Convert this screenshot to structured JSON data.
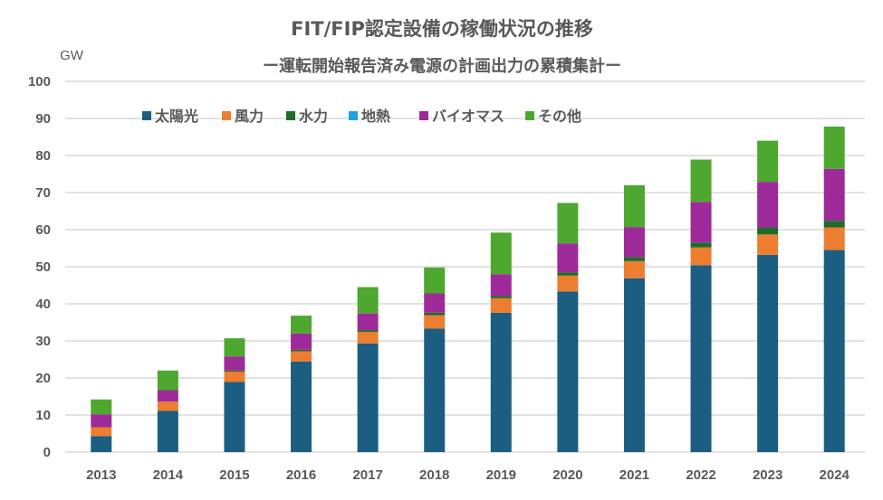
{
  "chart_data": {
    "type": "bar",
    "stacked": true,
    "title": "FIT/FIP認定設備の稼働状況の推移",
    "subtitle": "ー運転開始報告済み電源の計画出力の累積集計ー",
    "xlabel": "",
    "ylabel": "GW",
    "ylim": [
      0,
      100
    ],
    "yticks": [
      0,
      10,
      20,
      30,
      40,
      50,
      60,
      70,
      80,
      90,
      100
    ],
    "grid": true,
    "legend_position": "top-left",
    "categories": [
      "2013",
      "2014",
      "2015",
      "2016",
      "2017",
      "2018",
      "2019",
      "2020",
      "2021",
      "2022",
      "2023",
      "2024"
    ],
    "series": [
      {
        "name": "太陽光",
        "color": "#1B5E82",
        "values": [
          4.3,
          11.1,
          18.9,
          24.4,
          29.3,
          33.3,
          37.6,
          43.3,
          46.9,
          50.4,
          53.2,
          54.5
        ]
      },
      {
        "name": "風力",
        "color": "#ED7D31",
        "values": [
          2.4,
          2.5,
          2.8,
          2.8,
          3.1,
          3.6,
          3.9,
          4.3,
          4.6,
          4.8,
          5.5,
          6.1
        ]
      },
      {
        "name": "水力",
        "color": "#1E6B2A",
        "values": [
          0.0,
          0.0,
          0.3,
          0.4,
          0.5,
          0.7,
          0.6,
          0.9,
          1.1,
          1.3,
          1.9,
          1.8
        ]
      },
      {
        "name": "地熱",
        "color": "#1FA2DE",
        "values": [
          0,
          0,
          0,
          0,
          0,
          0,
          0,
          0,
          0,
          0,
          0,
          0
        ]
      },
      {
        "name": "バイオマス",
        "color": "#9E2A99",
        "values": [
          3.5,
          3.1,
          3.8,
          4.4,
          4.5,
          5.2,
          5.9,
          7.8,
          8.1,
          11.0,
          12.3,
          14.0
        ]
      },
      {
        "name": "その他",
        "color": "#4EA72E",
        "values": [
          4.0,
          5.3,
          4.9,
          4.8,
          7.1,
          7.0,
          11.2,
          10.9,
          11.3,
          11.4,
          11.1,
          11.4
        ]
      }
    ]
  },
  "colors": {
    "grid": "#D9D9D9",
    "text": "#595959"
  }
}
